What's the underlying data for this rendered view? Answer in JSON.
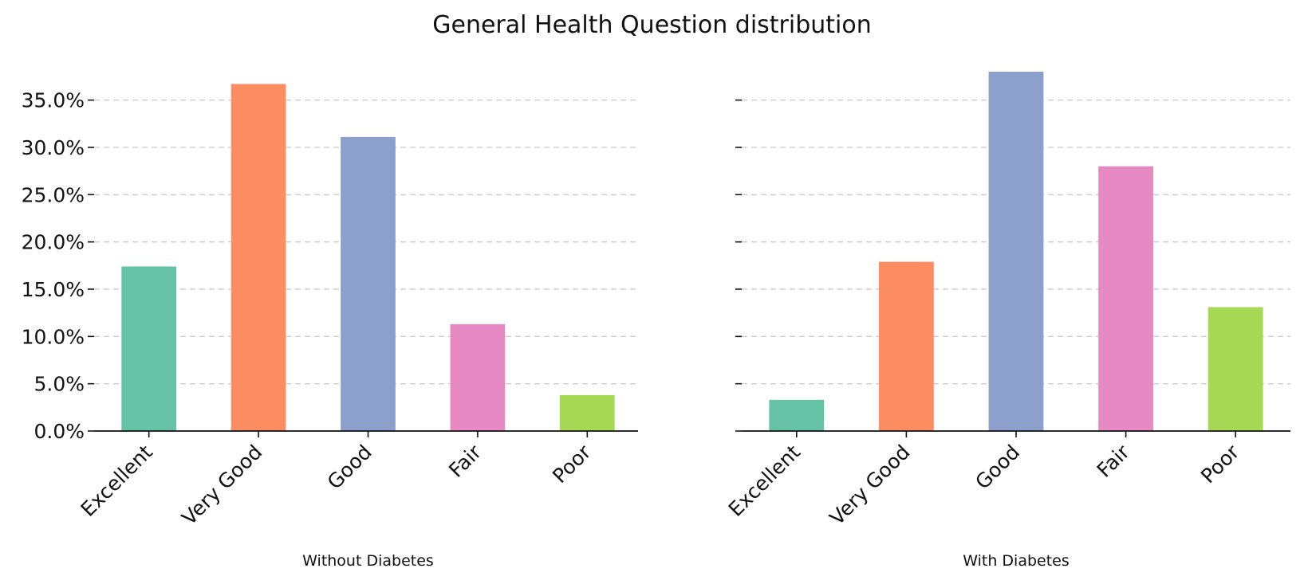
{
  "figure": {
    "suptitle": "General Health Question distribution"
  },
  "chart_data": [
    {
      "type": "bar",
      "title": "",
      "xlabel": "Without Diabetes",
      "ylabel": "",
      "categories": [
        "Excellent",
        "Very Good",
        "Good",
        "Fair",
        "Poor"
      ],
      "values": [
        17.4,
        36.7,
        31.1,
        11.3,
        3.8
      ],
      "colors": [
        "#66c2a5",
        "#fc8d62",
        "#8da0cb",
        "#e78ac3",
        "#a6d854"
      ],
      "ylim": [
        0,
        38
      ],
      "yticks": [
        "0.0%",
        "5.0%",
        "10.0%",
        "15.0%",
        "20.0%",
        "25.0%",
        "30.0%",
        "35.0%"
      ],
      "grid": "y dashed"
    },
    {
      "type": "bar",
      "title": "",
      "xlabel": "With Diabetes",
      "ylabel": "",
      "categories": [
        "Excellent",
        "Very Good",
        "Good",
        "Fair",
        "Poor"
      ],
      "values": [
        3.3,
        17.9,
        38.0,
        28.0,
        13.1
      ],
      "colors": [
        "#66c2a5",
        "#fc8d62",
        "#8da0cb",
        "#e78ac3",
        "#a6d854"
      ],
      "ylim": [
        0,
        38
      ],
      "yticks": [],
      "grid": "y dashed"
    }
  ]
}
